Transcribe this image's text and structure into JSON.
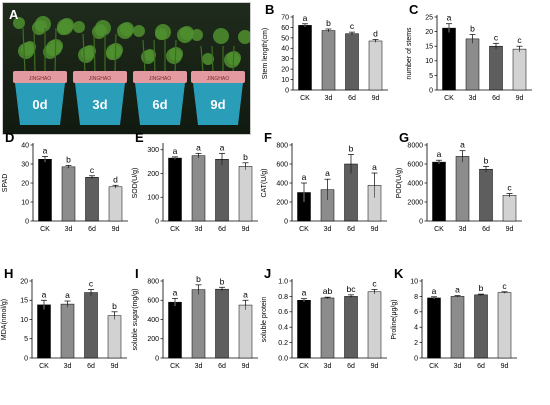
{
  "photo": {
    "letter": "A",
    "pot_labels": [
      "0d",
      "3d",
      "6d",
      "9d"
    ],
    "rim_text": "JINGHAO"
  },
  "colors": {
    "bars": [
      "#000000",
      "#8c8c8c",
      "#5e5e5e",
      "#d2d2d2"
    ],
    "error": "#000000",
    "pot_body": "#2a9db8",
    "rim": "#e39aa0",
    "foliage": "#4f8f2f"
  },
  "chart_data": [
    {
      "letter": "B",
      "type": "bar",
      "ylabel": "Stem length(cm)",
      "categories": [
        "CK",
        "3d",
        "6d",
        "9d"
      ],
      "values": [
        62,
        57,
        54,
        47
      ],
      "errors": [
        1.5,
        1.5,
        1.5,
        1.5
      ],
      "sig": [
        "a",
        "b",
        "c",
        "d"
      ],
      "yticks": [
        0,
        10,
        20,
        30,
        40,
        50,
        60,
        70
      ],
      "ylim": [
        0,
        70
      ]
    },
    {
      "letter": "C",
      "type": "bar",
      "ylabel": "number of stems",
      "categories": [
        "CK",
        "3d",
        "6d",
        "9d"
      ],
      "values": [
        21.2,
        17.5,
        15,
        14
      ],
      "errors": [
        1.5,
        1.5,
        1.0,
        1.0
      ],
      "sig": [
        "a",
        "b",
        "c",
        "c"
      ],
      "yticks": [
        0,
        5,
        10,
        15,
        20,
        25
      ],
      "ylim": [
        0,
        25
      ]
    },
    {
      "letter": "D",
      "type": "bar",
      "ylabel": "SPAD",
      "categories": [
        "CK",
        "3d",
        "6d",
        "9d"
      ],
      "values": [
        32.5,
        28.5,
        23,
        18
      ],
      "errors": [
        1.5,
        0.8,
        0.8,
        0.8
      ],
      "sig": [
        "a",
        "b",
        "c",
        "d"
      ],
      "yticks": [
        0,
        10,
        20,
        30,
        40
      ],
      "ylim": [
        0,
        40
      ]
    },
    {
      "letter": "E",
      "type": "bar",
      "ylabel": "SOD(U/g)",
      "categories": [
        "CK",
        "3d",
        "6d",
        "9d"
      ],
      "values": [
        265,
        275,
        260,
        230
      ],
      "errors": [
        5,
        10,
        25,
        15
      ],
      "sig": [
        "a",
        "a",
        "a",
        "b"
      ],
      "yticks": [
        0,
        100,
        200,
        300
      ],
      "ylim": [
        0,
        320
      ]
    },
    {
      "letter": "F",
      "type": "bar",
      "ylabel": "CAT(U/g)",
      "categories": [
        "CK",
        "3d",
        "6d",
        "9d"
      ],
      "values": [
        300,
        330,
        600,
        375
      ],
      "errors": [
        100,
        110,
        100,
        130
      ],
      "sig": [
        "a",
        "a",
        "b",
        "a"
      ],
      "yticks": [
        0,
        200,
        400,
        600,
        800
      ],
      "ylim": [
        0,
        800
      ]
    },
    {
      "letter": "G",
      "type": "bar",
      "ylabel": "POD(U/g)",
      "categories": [
        "CK",
        "3d",
        "6d",
        "9d"
      ],
      "values": [
        6200,
        6800,
        5450,
        2700
      ],
      "errors": [
        200,
        600,
        300,
        200
      ],
      "sig": [
        "a",
        "a",
        "b",
        "c"
      ],
      "yticks": [
        0,
        2000,
        4000,
        6000,
        8000
      ],
      "ylim": [
        0,
        8000
      ]
    },
    {
      "letter": "H",
      "type": "bar",
      "ylabel": "MDA(nmol/g)",
      "categories": [
        "CK",
        "3d",
        "6d",
        "9d"
      ],
      "values": [
        13.8,
        14,
        17,
        11
      ],
      "errors": [
        1.2,
        0.8,
        0.8,
        1.0
      ],
      "sig": [
        "a",
        "a",
        "c",
        "b"
      ],
      "yticks": [
        0,
        5,
        10,
        15,
        20
      ],
      "ylim": [
        0,
        20
      ]
    },
    {
      "letter": "I",
      "type": "bar",
      "ylabel": "soluble sugar(mg/g)",
      "categories": [
        "CK",
        "3d",
        "6d",
        "9d"
      ],
      "values": [
        580,
        710,
        715,
        550
      ],
      "errors": [
        40,
        50,
        20,
        50
      ],
      "sig": [
        "a",
        "b",
        "b",
        "a"
      ],
      "yticks": [
        0,
        200,
        400,
        600,
        800
      ],
      "ylim": [
        0,
        800
      ]
    },
    {
      "letter": "J",
      "type": "bar",
      "ylabel": "soluble protein",
      "categories": [
        "CK",
        "3d",
        "6d",
        "9d"
      ],
      "values": [
        0.75,
        0.78,
        0.8,
        0.86
      ],
      "errors": [
        0.02,
        0.01,
        0.02,
        0.03
      ],
      "sig": [
        "a",
        "ab",
        "bc",
        "c"
      ],
      "yticks": [
        0.0,
        0.2,
        0.4,
        0.6,
        0.8,
        1.0
      ],
      "ylim": [
        0,
        1.0
      ]
    },
    {
      "letter": "K",
      "type": "bar",
      "ylabel": "Proline(μg/g)",
      "categories": [
        "CK",
        "3d",
        "6d",
        "9d"
      ],
      "values": [
        7.8,
        8.0,
        8.2,
        8.5
      ],
      "errors": [
        0.15,
        0.1,
        0.1,
        0.1
      ],
      "sig": [
        "a",
        "a",
        "b",
        "c"
      ],
      "yticks": [
        0,
        2,
        4,
        6,
        8,
        10
      ],
      "ylim": [
        0,
        10
      ]
    }
  ]
}
